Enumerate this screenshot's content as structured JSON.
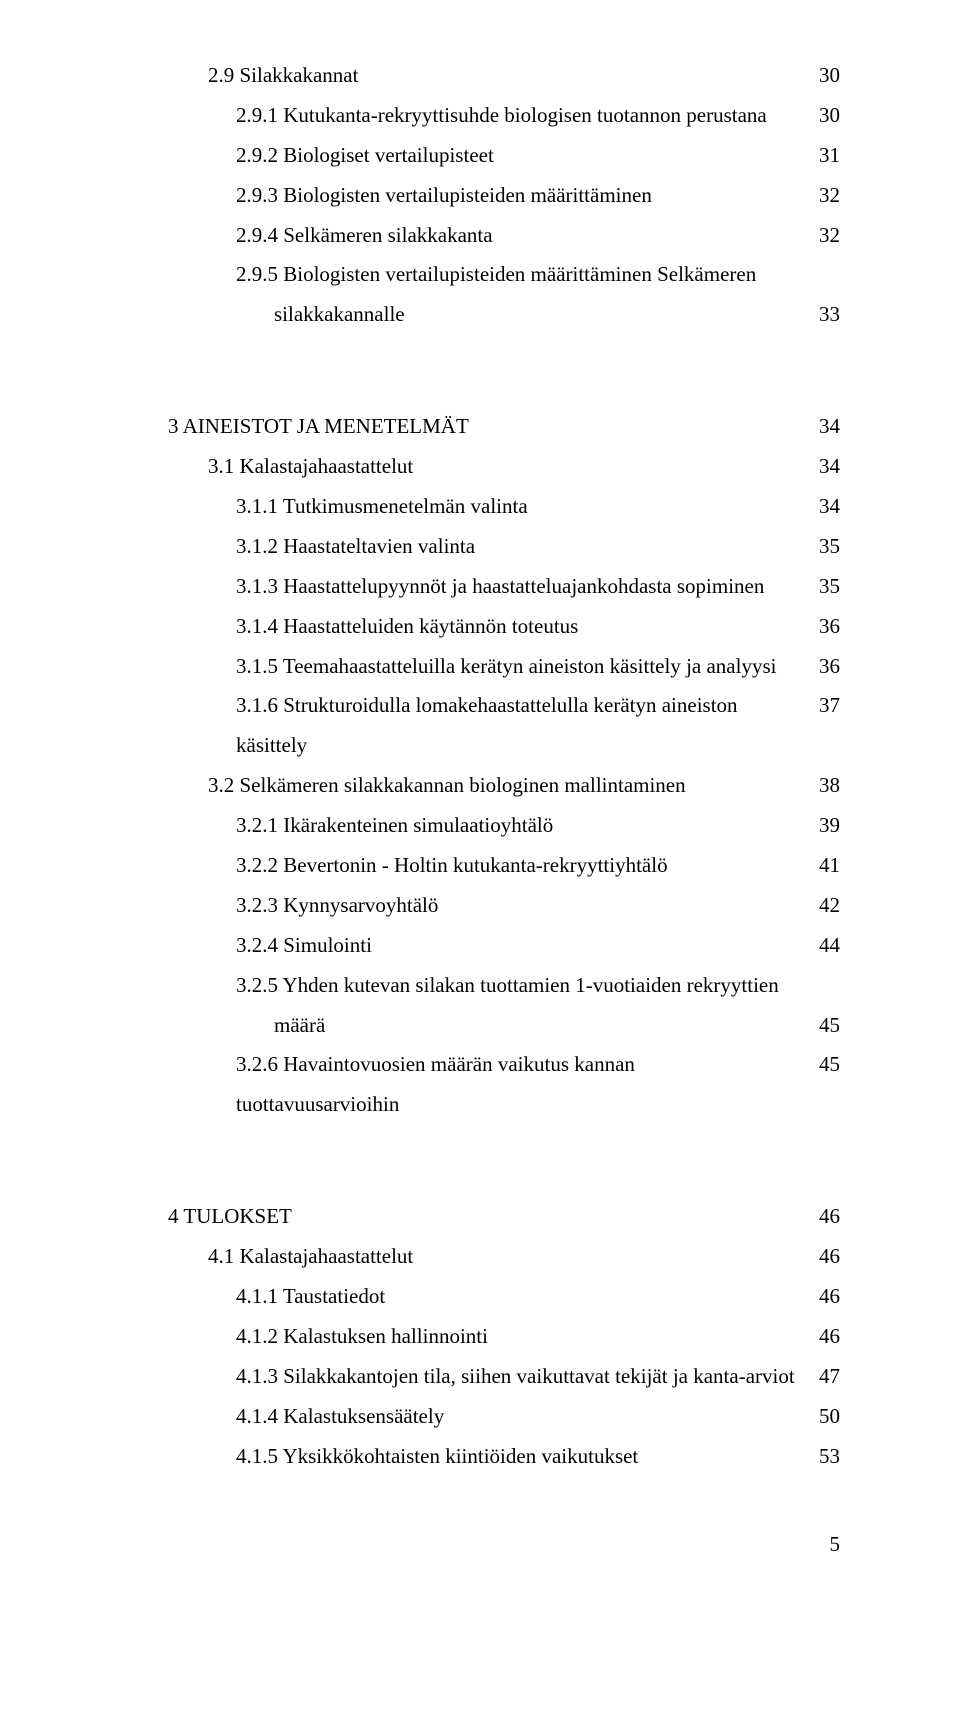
{
  "font_family": "Times New Roman",
  "base_font_size_pt": 16,
  "text_color": "#000000",
  "background_color": "#ffffff",
  "page_number": "5",
  "entries": [
    {
      "indent": 1,
      "label": "2.9 Silakkakannat",
      "page": "30"
    },
    {
      "indent": 2,
      "label": "2.9.1 Kutukanta-rekryyttisuhde biologisen tuotannon perustana",
      "page": "30"
    },
    {
      "indent": 2,
      "label": "2.9.2 Biologiset vertailupisteet",
      "page": "31"
    },
    {
      "indent": 2,
      "label": "2.9.3 Biologisten vertailupisteiden määrittäminen",
      "page": "32"
    },
    {
      "indent": 2,
      "label": "2.9.4 Selkämeren silakkakanta",
      "page": "32"
    },
    {
      "indent": 2,
      "label": "2.9.5 Biologisten vertailupisteiden määrittäminen Selkämeren",
      "cont": "silakkakannalle",
      "cont_indent": 3,
      "page": "33"
    },
    {
      "gap": true
    },
    {
      "indent": 0,
      "label": "3   AINEISTOT JA MENETELMÄT",
      "page": "34"
    },
    {
      "indent": 1,
      "label": "3.1 Kalastajahaastattelut",
      "page": "34"
    },
    {
      "indent": 2,
      "label": "3.1.1 Tutkimusmenetelmän valinta",
      "page": "34"
    },
    {
      "indent": 2,
      "label": "3.1.2 Haastateltavien valinta",
      "page": "35"
    },
    {
      "indent": 2,
      "label": "3.1.3 Haastattelupyynnöt ja haastatteluajankohdasta sopiminen",
      "page": "35"
    },
    {
      "indent": 2,
      "label": "3.1.4 Haastatteluiden käytännön toteutus",
      "page": "36"
    },
    {
      "indent": 2,
      "label": "3.1.5 Teemahaastatteluilla kerätyn aineiston käsittely ja analyysi",
      "page": "36"
    },
    {
      "indent": 2,
      "label": "3.1.6 Strukturoidulla lomakehaastattelulla kerätyn aineiston käsittely",
      "page": "37"
    },
    {
      "indent": 1,
      "label": "3.2 Selkämeren silakkakannan biologinen mallintaminen",
      "page": "38"
    },
    {
      "indent": 2,
      "label": "3.2.1 Ikärakenteinen simulaatioyhtälö",
      "page": "39"
    },
    {
      "indent": 2,
      "label": "3.2.2 Bevertonin - Holtin kutukanta-rekryyttiyhtälö",
      "page": "41"
    },
    {
      "indent": 2,
      "label": "3.2.3 Kynnysarvoyhtälö",
      "page": "42"
    },
    {
      "indent": 2,
      "label": "3.2.4 Simulointi",
      "page": "44"
    },
    {
      "indent": 2,
      "label": "3.2.5 Yhden kutevan silakan tuottamien 1-vuotiaiden rekryyttien",
      "cont": "määrä",
      "cont_indent": 3,
      "page": "45"
    },
    {
      "indent": 2,
      "label": "3.2.6 Havaintovuosien määrän vaikutus kannan tuottavuusarvioihin",
      "page": "45"
    },
    {
      "gap": true
    },
    {
      "indent": 0,
      "label": "4   TULOKSET",
      "page": "46"
    },
    {
      "indent": 1,
      "label": "4.1 Kalastajahaastattelut",
      "page": "46"
    },
    {
      "indent": 2,
      "label": "4.1.1 Taustatiedot",
      "page": "46"
    },
    {
      "indent": 2,
      "label": "4.1.2 Kalastuksen hallinnointi",
      "page": "46"
    },
    {
      "indent": 2,
      "label": "4.1.3 Silakkakantojen tila, siihen vaikuttavat tekijät ja kanta-arviot",
      "page": "47"
    },
    {
      "indent": 2,
      "label": "4.1.4 Kalastuksensäätely",
      "page": "50"
    },
    {
      "indent": 2,
      "label": "4.1.5 Yksikkökohtaisten kiintiöiden vaikutukset",
      "page": "53"
    }
  ]
}
